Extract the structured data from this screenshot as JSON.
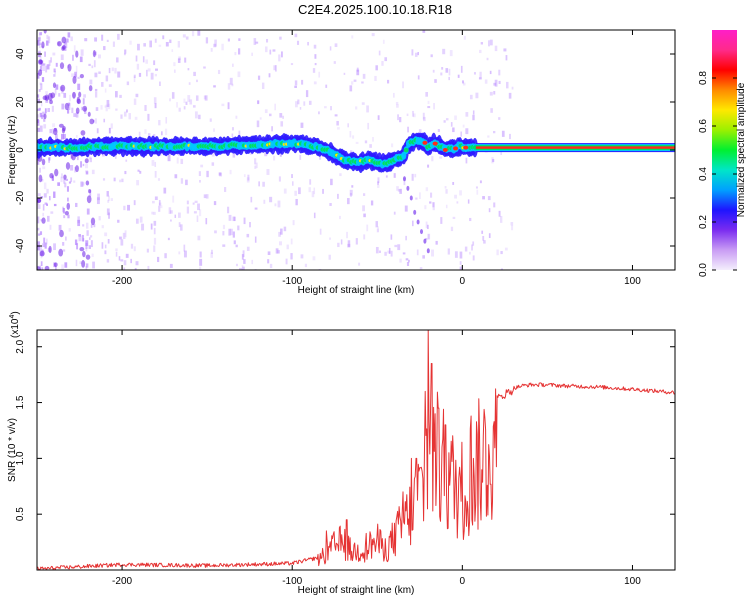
{
  "figure": {
    "title": "C2E4.2025.100.10.18.R18"
  },
  "colors": {
    "axis": "#000000",
    "snr_line": "#e53333",
    "spectrogram_band_core": "#ff2a1a",
    "spectrogram_ridge": "#00e05a",
    "spectrogram_mid": "#00c8ff",
    "spectrogram_low": "#2d1bff",
    "spectrogram_noise": "#b07cff"
  },
  "chart_data": [
    {
      "type": "heatmap",
      "name": "spectrogram",
      "title": "",
      "xlabel": "Height of straight line (km)",
      "ylabel": "Frequency (Hz)",
      "xlim": [
        -250,
        125
      ],
      "ylim": [
        -50,
        50
      ],
      "xticks": [
        -200,
        -100,
        0,
        100
      ],
      "yticks": [
        -40,
        -20,
        0,
        20,
        40
      ],
      "colorbar": {
        "label": "Normalized spectral amplitude",
        "range": [
          0.0,
          1.0
        ],
        "ticks": [
          "0.0",
          "0.2",
          "0.4",
          "0.6",
          "0.8"
        ],
        "tick_values": [
          0.0,
          0.2,
          0.4,
          0.6,
          0.8
        ],
        "colormap": [
          "#f4eefc",
          "#c99cf4",
          "#7a2cf0",
          "#1e14ff",
          "#00a0ff",
          "#00e6c8",
          "#00f030",
          "#9cf000",
          "#ffe800",
          "#ff8a00",
          "#ff0000",
          "#ff2a8a",
          "#ff1ec8"
        ]
      },
      "ridge": {
        "x": [
          -250,
          -230,
          -210,
          -190,
          -170,
          -150,
          -130,
          -110,
          -100,
          -90,
          -80,
          -75,
          -70,
          -65,
          -60,
          -55,
          -50,
          -45,
          -40,
          -35,
          -32,
          -30,
          -28,
          -25,
          -22,
          -20,
          -17,
          -14,
          -10,
          -7,
          -5,
          -2,
          0,
          5,
          10,
          20,
          40,
          60,
          80,
          100,
          125
        ],
        "y": [
          1,
          1,
          1.5,
          1.5,
          1.5,
          1.5,
          2,
          2.5,
          3,
          2,
          0,
          -2,
          -4,
          -5,
          -5,
          -4,
          -5,
          -6,
          -4,
          -3,
          2,
          3,
          3.5,
          4,
          3,
          1,
          3,
          2,
          0,
          1,
          0,
          2,
          1,
          1,
          1,
          1,
          1,
          1,
          1,
          1,
          1
        ]
      },
      "stray_tail": {
        "x": [
          -34,
          -32,
          -30,
          -28,
          -26,
          -24,
          -22,
          -20
        ],
        "y": [
          -12,
          -16,
          -20,
          -26,
          -30,
          -34,
          -38,
          -42
        ]
      }
    },
    {
      "type": "line",
      "name": "snr",
      "title": "",
      "xlabel": "Height of straight line (km)",
      "ylabel": "SNR (10 * v/v)",
      "multiplier_label": "(x10",
      "multiplier_exponent": "4",
      "multiplier_close": ")",
      "xlim": [
        -250,
        125
      ],
      "ylim": [
        0,
        2.15
      ],
      "xticks": [
        -200,
        -100,
        0,
        100
      ],
      "yticks": [
        0.5,
        1.0,
        1.5,
        2.0
      ],
      "ytick_labels": [
        "0.5",
        "1.0",
        "1.5",
        "2.0"
      ],
      "series": [
        {
          "name": "",
          "envelope_x": [
            -250,
            -200,
            -150,
            -100,
            -85,
            -80,
            -75,
            -70,
            -65,
            -60,
            -55,
            -50,
            -45,
            -40,
            -35,
            -30,
            -25,
            -22,
            -20,
            -18,
            -15,
            -10,
            -5,
            0,
            5,
            10,
            15,
            20,
            25,
            30,
            35,
            40,
            50,
            60,
            80,
            100,
            125
          ],
          "envelope_y": [
            0.02,
            0.06,
            0.05,
            0.07,
            0.12,
            0.2,
            0.3,
            0.35,
            0.22,
            0.25,
            0.3,
            0.35,
            0.25,
            0.4,
            0.55,
            0.72,
            0.95,
            1.1,
            1.7,
            1.4,
            1.35,
            1.2,
            1.05,
            1.0,
            1.15,
            1.3,
            1.45,
            1.55,
            1.6,
            1.64,
            1.66,
            1.67,
            1.67,
            1.66,
            1.65,
            1.63,
            1.6
          ],
          "peaks_x": [
            -80,
            -68,
            -35,
            -30,
            -27,
            -24,
            -22,
            -20,
            -18,
            -16,
            -14,
            -12,
            -10,
            -8,
            5
          ],
          "peaks_y": [
            0.35,
            0.45,
            0.7,
            1.0,
            1.0,
            0.92,
            1.6,
            2.15,
            1.85,
            1.4,
            1.45,
            1.1,
            1.3,
            1.05,
            1.38
          ]
        }
      ]
    }
  ]
}
